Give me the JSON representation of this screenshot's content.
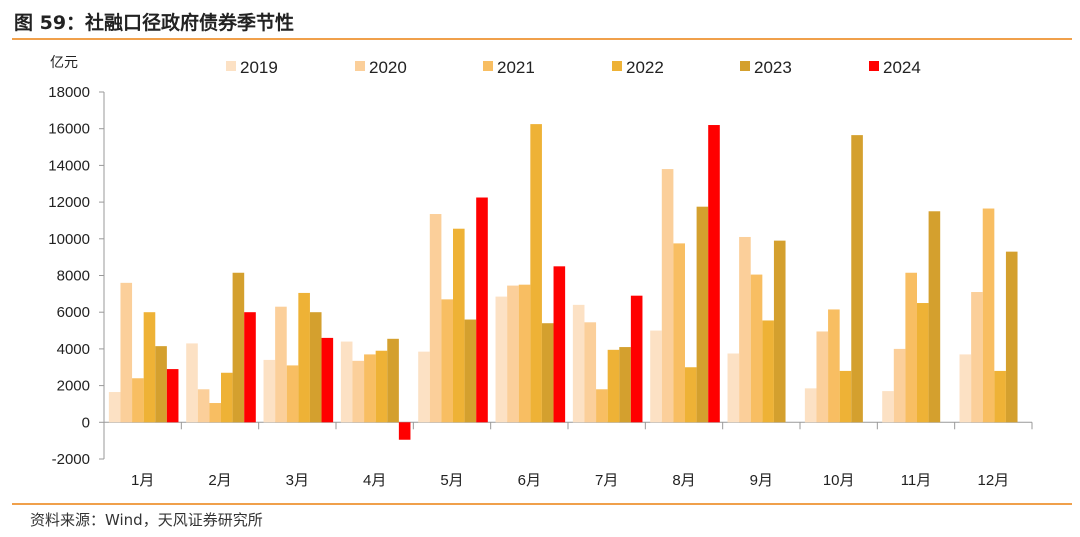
{
  "header": {
    "title": "图 59：社融口径政府债券季节性"
  },
  "footer": {
    "source": "资料来源：Wind，天风证券研究所"
  },
  "chart_data": {
    "type": "bar",
    "title": "",
    "ylabel": "亿元",
    "xlabel": "",
    "ylim": [
      -2000,
      18000
    ],
    "yticks": [
      -2000,
      0,
      2000,
      4000,
      6000,
      8000,
      10000,
      12000,
      14000,
      16000,
      18000
    ],
    "grid": false,
    "legend": "top",
    "categories": [
      "1月",
      "2月",
      "3月",
      "4月",
      "5月",
      "6月",
      "7月",
      "8月",
      "9月",
      "10月",
      "11月",
      "12月"
    ],
    "series": [
      {
        "name": "2019",
        "color": "#FCE1C4",
        "values": [
          1650,
          4300,
          3400,
          4400,
          3850,
          6850,
          6400,
          5000,
          3750,
          1850,
          1700,
          3700
        ]
      },
      {
        "name": "2020",
        "color": "#FBCF9A",
        "values": [
          7600,
          1800,
          6300,
          3350,
          11350,
          7450,
          5450,
          13800,
          10100,
          4950,
          4000,
          7100
        ]
      },
      {
        "name": "2021",
        "color": "#F8BE62",
        "values": [
          2400,
          1050,
          3100,
          3700,
          6700,
          7500,
          1800,
          9750,
          8050,
          6150,
          8150,
          11650
        ]
      },
      {
        "name": "2022",
        "color": "#EEB236",
        "values": [
          6000,
          2700,
          7050,
          3900,
          10550,
          16250,
          3950,
          3000,
          5550,
          2800,
          6500,
          2800
        ]
      },
      {
        "name": "2023",
        "color": "#D4A02E",
        "values": [
          4150,
          8150,
          6000,
          4550,
          5600,
          5400,
          4100,
          11750,
          9900,
          15650,
          11500,
          9300
        ]
      },
      {
        "name": "2024",
        "color": "#FF0000",
        "values": [
          2900,
          6000,
          4600,
          -950,
          12250,
          8500,
          6900,
          16200,
          null,
          null,
          null,
          null
        ]
      }
    ]
  }
}
